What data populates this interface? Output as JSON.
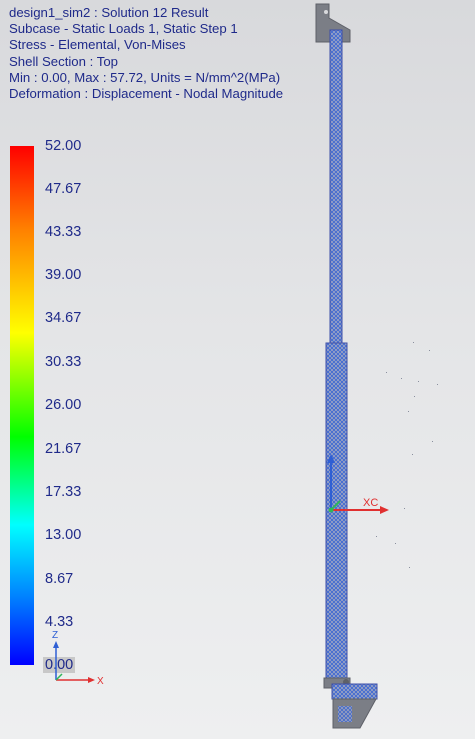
{
  "header": {
    "lines": [
      "design1_sim2 : Solution 12 Result",
      "Subcase - Static Loads 1, Static Step 1",
      "Stress - Elemental, Von-Mises",
      "Shell Section : Top",
      "Min : 0.00, Max : 57.72, Units = N/mm^2(MPa)",
      "Deformation : Displacement - Nodal Magnitude"
    ]
  },
  "legend": {
    "labels": [
      "52.00",
      "47.67",
      "43.33",
      "39.00",
      "34.67",
      "30.33",
      "26.00",
      "21.67",
      "17.33",
      "13.00",
      "8.67",
      "4.33",
      "0.00"
    ],
    "selected_index": 12,
    "color_stops": [
      "#ff0000",
      "#ff8000",
      "#ffff00",
      "#00ff00",
      "#00ffff",
      "#0080ff",
      "#0000ff"
    ]
  },
  "triad": {
    "z_label": "Z",
    "x_label": "X"
  },
  "wcs": {
    "xc_label": "XC"
  },
  "colors": {
    "text": "#1f2a8a",
    "mesh": "#2f5fd4",
    "body": "#4f6bc4",
    "bracket": "#7b7e86",
    "axis_x": "#e03030",
    "axis_y": "#2fb55a",
    "axis_z": "#2f5fd4"
  }
}
